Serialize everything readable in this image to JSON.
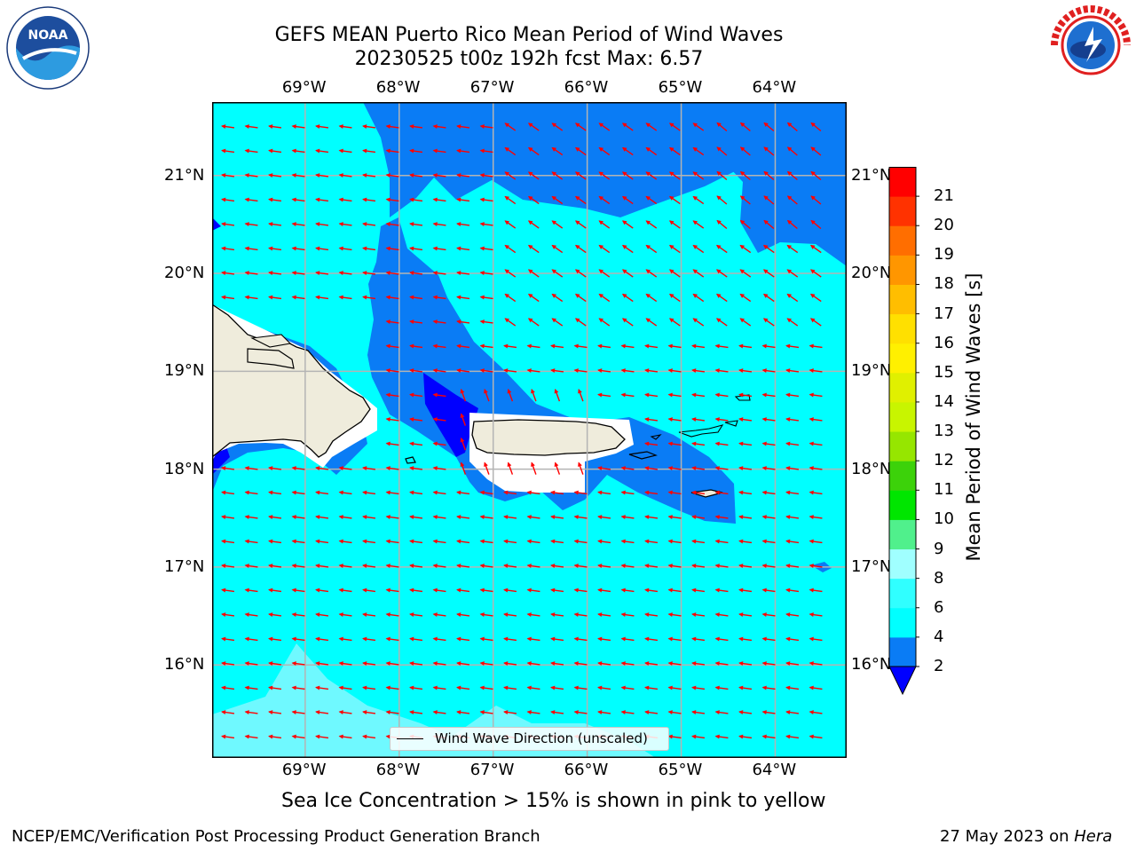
{
  "title": {
    "line1": "GEFS MEAN Puerto Rico Mean Period of Wind Waves",
    "line2": "20230525 t00z 192h fcst   Max: 6.57"
  },
  "logos": {
    "left": {
      "name": "noara-logo",
      "text": "NOAA",
      "ring": "NATIONAL OCEANIC AND ATMOSPHERIC ADMINISTRATION · U.S. DEPARTMENT OF COMMERCE"
    },
    "right": {
      "name": "nws-logo",
      "ring": "NATIONAL WEATHER SERVICE"
    }
  },
  "map": {
    "lon_labels": [
      "69°W",
      "68°W",
      "67°W",
      "66°W",
      "65°W",
      "64°W"
    ],
    "lat_labels": [
      "21°N",
      "20°N",
      "19°N",
      "18°N",
      "17°N",
      "16°N"
    ],
    "extent": {
      "lon": [
        -69.99,
        -63.24
      ],
      "lat": [
        15.05,
        21.75
      ]
    },
    "gridlines": true,
    "arrow_color": "#ff0000",
    "land_color": "#efecdc",
    "legend_text": "Wind Wave Direction (unscaled)",
    "legend_placement": "lower-center"
  },
  "colorbar": {
    "label": "Mean Period of Wind Waves [s]",
    "ticks": [
      "2",
      "4",
      "6",
      "8",
      "9",
      "10",
      "11",
      "12",
      "13",
      "14",
      "15",
      "16",
      "17",
      "18",
      "19",
      "20",
      "21"
    ],
    "colors": [
      "#0a7cf5",
      "#00ffff",
      "#30ffff",
      "#a0ffff",
      "#50f08c",
      "#00e600",
      "#3cd20a",
      "#96e600",
      "#c8f500",
      "#e0f000",
      "#fff000",
      "#ffe000",
      "#ffbe00",
      "#ff9600",
      "#ff6e00",
      "#ff3200",
      "#ff0000"
    ],
    "under_color": "#0000ff"
  },
  "note": "Sea Ice Concentration > 15% is shown in pink to yellow",
  "footer": {
    "left": "NCEP/EMC/Verification Post Processing Product Generation Branch",
    "right_prefix": "27 May 2023 on ",
    "right_host": "Hera"
  }
}
